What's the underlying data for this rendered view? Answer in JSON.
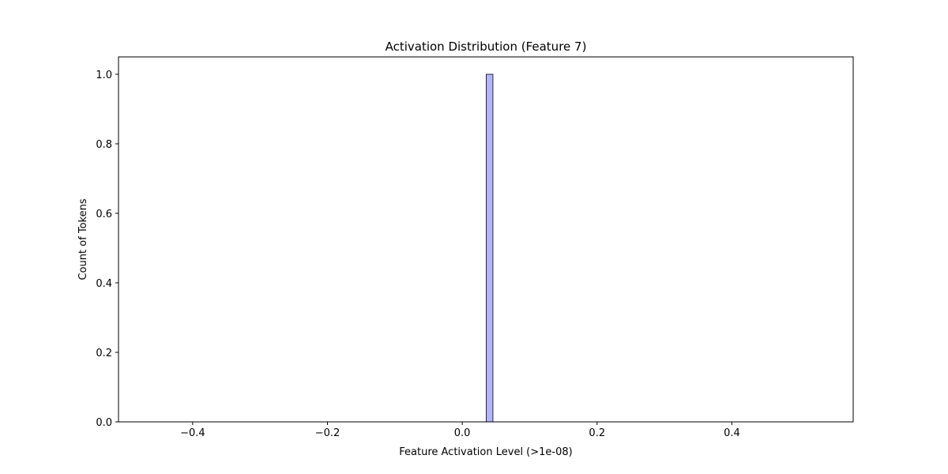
{
  "chart_data": {
    "type": "bar",
    "title": "Activation Distribution (Feature 7)",
    "xlabel": "Feature Activation Level (>1e-08)",
    "ylabel": "Count of Tokens",
    "xlim": [
      -0.51,
      0.58
    ],
    "ylim": [
      0,
      1.05
    ],
    "x_ticks": [
      -0.4,
      -0.2,
      0.0,
      0.2,
      0.4
    ],
    "x_tick_labels": [
      "−0.4",
      "−0.2",
      "0.0",
      "0.2",
      "0.4"
    ],
    "y_ticks": [
      0.0,
      0.2,
      0.4,
      0.6,
      0.8,
      1.0
    ],
    "y_tick_labels": [
      "0.0",
      "0.2",
      "0.4",
      "0.6",
      "0.8",
      "1.0"
    ],
    "bins": [
      {
        "x_start": 0.0355,
        "x_end": 0.0455,
        "count": 1
      }
    ],
    "grid": false,
    "bar_color": "#b3b3ff",
    "bar_edge_color": "#000000"
  }
}
